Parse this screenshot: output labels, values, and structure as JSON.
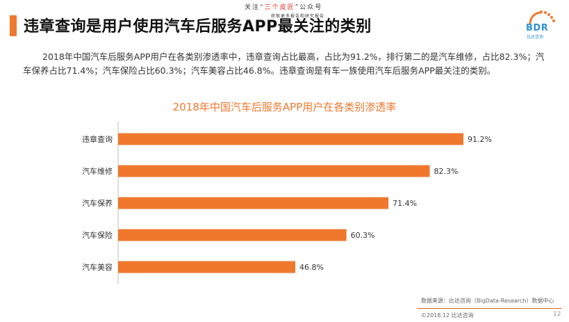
{
  "header": {
    "title": "违章查询是用户使用汽车后服务APP最关注的类别",
    "note_prefix": "关注“",
    "note_highlight": "三个皮匠",
    "note_suffix": "”公众号",
    "note_line2": "获取更多报告和研究报告"
  },
  "logo": {
    "text": "BDR",
    "sub": "比达咨询"
  },
  "description": "2018年中国汽车后服务APP用户在各类别渗透率中，违章查询占比最高，占比为91.2%，排行第二的是汽车维修，占比82.3%；汽车保养占比71.4%；汽车保险占比60.3%；汽车美容占比46.8%。违章查询是有车一族使用汽车后服务APP最关注的类别。",
  "chart_data": {
    "type": "bar",
    "orientation": "horizontal",
    "title": "2018年中国汽车后服务APP用户在各类别渗透率",
    "categories": [
      "违章查询",
      "汽车维修",
      "汽车保养",
      "汽车保险",
      "汽车美容"
    ],
    "values": [
      91.2,
      82.3,
      71.4,
      60.3,
      46.8
    ],
    "value_labels": [
      "91.2%",
      "82.3%",
      "71.4%",
      "60.3%",
      "46.8%"
    ],
    "unit": "%",
    "xlim": [
      0,
      100
    ],
    "bar_color": "#f0782d",
    "grid": false
  },
  "footer": {
    "source": "数据来源：比达咨询（BigData-Research）数据中心",
    "copyright": "©2018.12 比达咨询",
    "page": "12"
  }
}
